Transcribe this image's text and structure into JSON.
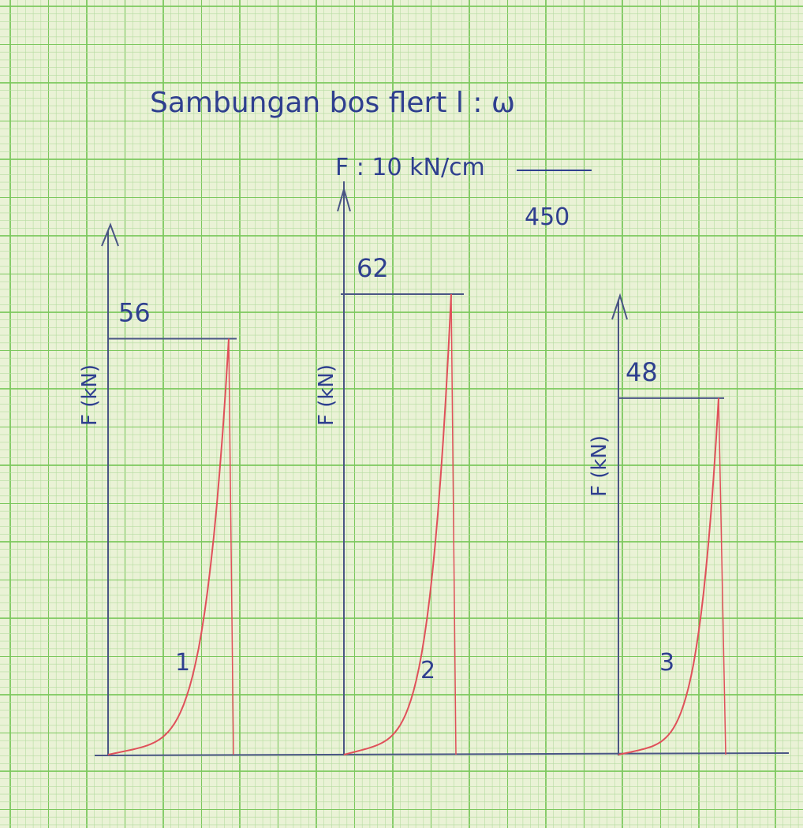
{
  "sheet": {
    "title": "Sambungan bos flert l : ω",
    "scale_note": "F : 10 kN/cm",
    "scale_value": "450",
    "colors": {
      "paper": "#eaf2d6",
      "grid_minor": "#b5dca0",
      "grid_major": "#7cc85e",
      "ink": "#2f3f8f",
      "curve": "#e0505a",
      "axis": "#4a5585"
    }
  },
  "chart_data": [
    {
      "type": "line",
      "title": "",
      "xlabel": "",
      "ylabel": "F (kN)",
      "series": [
        {
          "name": "1",
          "peak": 56
        }
      ],
      "peak_label": "56"
    },
    {
      "type": "line",
      "title": "",
      "xlabel": "",
      "ylabel": "F (kN)",
      "series": [
        {
          "name": "2",
          "peak": 62
        }
      ],
      "peak_label": "62"
    },
    {
      "type": "line",
      "title": "",
      "xlabel": "",
      "ylabel": "F (kN)",
      "series": [
        {
          "name": "3",
          "peak": 48
        }
      ],
      "peak_label": "48"
    }
  ]
}
